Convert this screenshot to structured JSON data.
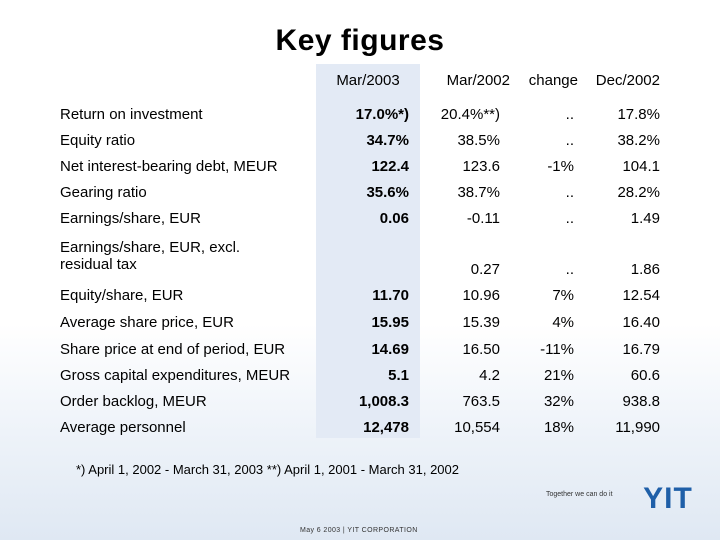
{
  "title": "Key figures",
  "headers": [
    "Mar/2003",
    "Mar/2002",
    "change",
    "Dec/2002"
  ],
  "rows": [
    {
      "label": "Return on investment",
      "v1": "17.0%*)",
      "v2": "20.4%**)",
      "v3": "..",
      "v4": "17.8%"
    },
    {
      "label": "Equity ratio",
      "v1": "34.7%",
      "v2": "38.5%",
      "v3": "..",
      "v4": "38.2%"
    },
    {
      "label": "Net interest-bearing debt, MEUR",
      "v1": "122.4",
      "v2": "123.6",
      "v3": "-1%",
      "v4": "104.1"
    },
    {
      "label": "Gearing ratio",
      "v1": "35.6%",
      "v2": "38.7%",
      "v3": "..",
      "v4": "28.2%"
    },
    {
      "label": "Earnings/share, EUR",
      "v1": "0.06",
      "v2": "-0.11",
      "v3": "..",
      "v4": "1.49"
    },
    {
      "label": "Earnings/share, EUR, excl. residual tax",
      "v1": "",
      "v2": "0.27",
      "v3": "..",
      "v4": "1.86"
    },
    {
      "label": "Equity/share, EUR",
      "v1": "11.70",
      "v2": "10.96",
      "v3": "7%",
      "v4": "12.54"
    },
    {
      "label": "Average share price, EUR",
      "v1": "15.95",
      "v2": "15.39",
      "v3": "4%",
      "v4": "16.40"
    },
    {
      "label": "Share price at end of period, EUR",
      "v1": "14.69",
      "v2": "16.50",
      "v3": "-11%",
      "v4": "16.79"
    },
    {
      "label": "Gross capital expenditures, MEUR",
      "v1": "5.1",
      "v2": "4.2",
      "v3": "21%",
      "v4": "60.6"
    },
    {
      "label": "Order backlog, MEUR",
      "v1": "1,008.3",
      "v2": "763.5",
      "v3": "32%",
      "v4": "938.8"
    },
    {
      "label": "Average personnel",
      "v1": "12,478",
      "v2": "10,554",
      "v3": "18%",
      "v4": "11,990"
    }
  ],
  "footnote": "*) April 1, 2002 - March 31, 2003   **) April 1, 2001 - March 31, 2002",
  "tagline": "Together we can do it",
  "logo_text": "YIT",
  "bottom_note": "May 6 2003   |   YIT CORPORATION",
  "colors": {
    "highlight": "#e3eaf5",
    "logo": "#1f5fa8"
  }
}
